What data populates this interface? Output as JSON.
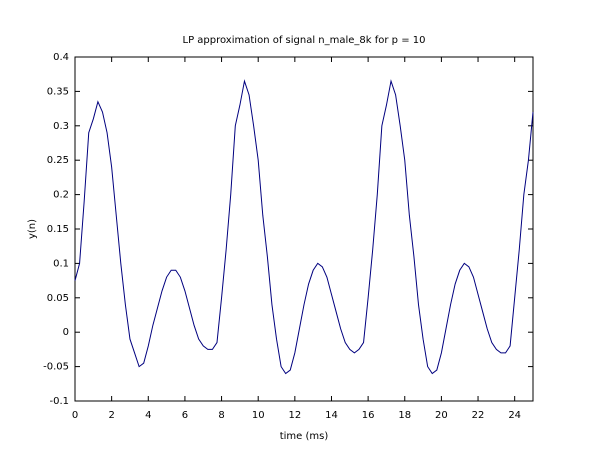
{
  "chart_data": {
    "type": "line",
    "title": "LP approximation of signal n_male_8k for p = 10",
    "x_label": "time (ms)",
    "y_label": "y(n)",
    "xlim": [
      0,
      25
    ],
    "xticks": [
      0,
      2,
      4,
      6,
      8,
      10,
      12,
      14,
      16,
      18,
      20,
      22,
      24
    ],
    "ylim": [
      -0.1,
      0.4
    ],
    "yticks": [
      -0.1,
      -0.05,
      0,
      0.05,
      0.1,
      0.15,
      0.2,
      0.25,
      0.3,
      0.35,
      0.4
    ],
    "grid": false,
    "x": [
      0,
      0.25,
      0.5,
      0.75,
      1,
      1.25,
      1.5,
      1.75,
      2,
      2.25,
      2.5,
      2.75,
      3,
      3.25,
      3.5,
      3.75,
      4,
      4.25,
      4.5,
      4.75,
      5,
      5.25,
      5.5,
      5.75,
      6,
      6.25,
      6.5,
      6.75,
      7,
      7.25,
      7.5,
      7.75,
      8,
      8.25,
      8.5,
      8.75,
      9,
      9.25,
      9.5,
      9.75,
      10,
      10.25,
      10.5,
      10.75,
      11,
      11.25,
      11.5,
      11.75,
      12,
      12.25,
      12.5,
      12.75,
      13,
      13.25,
      13.5,
      13.75,
      14,
      14.25,
      14.5,
      14.75,
      15,
      15.25,
      15.5,
      15.75,
      16,
      16.25,
      16.5,
      16.75,
      17,
      17.25,
      17.5,
      17.75,
      18,
      18.25,
      18.5,
      18.75,
      19,
      19.25,
      19.5,
      19.75,
      20,
      20.25,
      20.5,
      20.75,
      21,
      21.25,
      21.5,
      21.75,
      22,
      22.25,
      22.5,
      22.75,
      23,
      23.25,
      23.5,
      23.75,
      24,
      24.25,
      24.5,
      24.75,
      25
    ],
    "series": [
      {
        "color": "#00007f",
        "values": [
          0.075,
          0.1,
          0.19,
          0.29,
          0.31,
          0.335,
          0.32,
          0.29,
          0.24,
          0.17,
          0.1,
          0.04,
          -0.01,
          -0.03,
          -0.05,
          -0.045,
          -0.02,
          0.01,
          0.035,
          0.06,
          0.08,
          0.09,
          0.09,
          0.08,
          0.06,
          0.035,
          0.01,
          -0.01,
          -0.02,
          -0.025,
          -0.025,
          -0.015,
          0.05,
          0.12,
          0.2,
          0.3,
          0.33,
          0.365,
          0.345,
          0.3,
          0.25,
          0.17,
          0.11,
          0.04,
          -0.01,
          -0.05,
          -0.06,
          -0.055,
          -0.03,
          0.005,
          0.04,
          0.07,
          0.09,
          0.1,
          0.095,
          0.08,
          0.055,
          0.03,
          0.005,
          -0.015,
          -0.025,
          -0.03,
          -0.025,
          -0.015,
          0.05,
          0.12,
          0.2,
          0.3,
          0.33,
          0.365,
          0.345,
          0.3,
          0.25,
          0.17,
          0.11,
          0.04,
          -0.01,
          -0.05,
          -0.06,
          -0.055,
          -0.03,
          0.005,
          0.04,
          0.07,
          0.09,
          0.1,
          0.095,
          0.08,
          0.055,
          0.03,
          0.005,
          -0.015,
          -0.025,
          -0.03,
          -0.03,
          -0.02,
          0.05,
          0.12,
          0.2,
          0.25,
          0.32
        ]
      }
    ]
  }
}
